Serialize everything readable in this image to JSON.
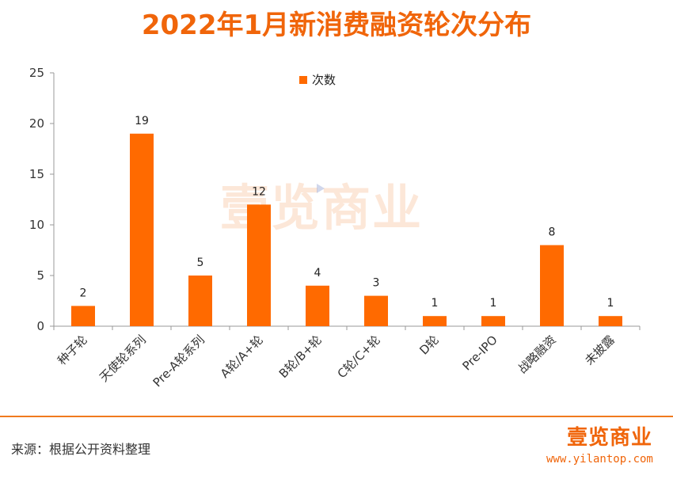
{
  "header": {
    "title": "2022年1月新消费融资轮次分布"
  },
  "watermark": {
    "text": "壹览商业"
  },
  "chart_data": {
    "type": "bar",
    "title": "2022年1月新消费融资轮次分布",
    "categories": [
      "种子轮",
      "天使轮系列",
      "Pre-A轮系列",
      "A轮/A+轮",
      "B轮/B+轮",
      "C轮/C+轮",
      "D轮",
      "Pre-IPO",
      "战略融资",
      "未披露"
    ],
    "series": [
      {
        "name": "次数",
        "values": [
          2,
          19,
          5,
          12,
          4,
          3,
          1,
          1,
          8,
          1
        ],
        "color": "#ff6a00"
      }
    ],
    "ylim": [
      0,
      25
    ],
    "yticks": [
      0,
      5,
      10,
      15,
      20,
      25
    ],
    "legend_position": "top-center",
    "grid": false
  },
  "footer": {
    "source": "来源：根据公开资料整理",
    "logo": "壹览商业",
    "site": "www.yilantop.com"
  },
  "colors": {
    "accent": "#f0650a",
    "bar": "#ff6a00"
  }
}
